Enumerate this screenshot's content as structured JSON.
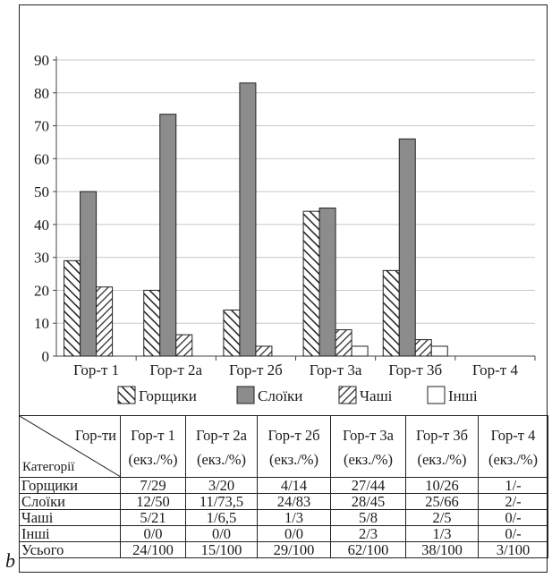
{
  "panel_label": "b",
  "chart_data": {
    "type": "bar",
    "title": "",
    "xlabel": "",
    "ylabel": "",
    "ylim": [
      0,
      90
    ],
    "yticks": [
      0,
      10,
      20,
      30,
      40,
      50,
      60,
      70,
      80,
      90
    ],
    "grid": true,
    "legend_position": "bottom",
    "categories": [
      "Гор-т 1",
      "Гор-т 2а",
      "Гор-т 2б",
      "Гор-т 3а",
      "Гор-т 3б",
      "Гор-т 4"
    ],
    "series": [
      {
        "name": "Горщики",
        "pattern": "hatch-backslash",
        "values": [
          29,
          20,
          14,
          44,
          26,
          0
        ]
      },
      {
        "name": "Слоїки",
        "pattern": "solid-gray",
        "color": "#8c8c8c",
        "values": [
          50,
          73.5,
          83,
          45,
          66,
          0
        ]
      },
      {
        "name": "Чаші",
        "pattern": "hatch-slash",
        "values": [
          21,
          6.5,
          3,
          8,
          5,
          0
        ]
      },
      {
        "name": "Інші",
        "pattern": "white",
        "values": [
          0,
          0,
          0,
          3,
          3,
          0
        ]
      }
    ]
  },
  "table": {
    "corner_top": "Гор-ти",
    "corner_bottom": "Категорії",
    "unit_label": "(екз./%)",
    "columns": [
      "Гор-т 1",
      "Гор-т 2а",
      "Гор-т 2б",
      "Гор-т 3а",
      "Гор-т 3б",
      "Гор-т 4"
    ],
    "rows": [
      {
        "label": "Горщики",
        "cells": [
          "7/29",
          "3/20",
          "4/14",
          "27/44",
          "10/26",
          "1/-"
        ]
      },
      {
        "label": "Слоїки",
        "cells": [
          "12/50",
          "11/73,5",
          "24/83",
          "28/45",
          "25/66",
          "2/-"
        ]
      },
      {
        "label": "Чаші",
        "cells": [
          "5/21",
          "1/6,5",
          "1/3",
          "5/8",
          "2/5",
          "0/-"
        ]
      },
      {
        "label": "Інші",
        "cells": [
          "0/0",
          "0/0",
          "0/0",
          "2/3",
          "1/3",
          "0/-"
        ]
      },
      {
        "label": "Усього",
        "cells": [
          "24/100",
          "15/100",
          "29/100",
          "62/100",
          "38/100",
          "3/100"
        ]
      }
    ]
  }
}
